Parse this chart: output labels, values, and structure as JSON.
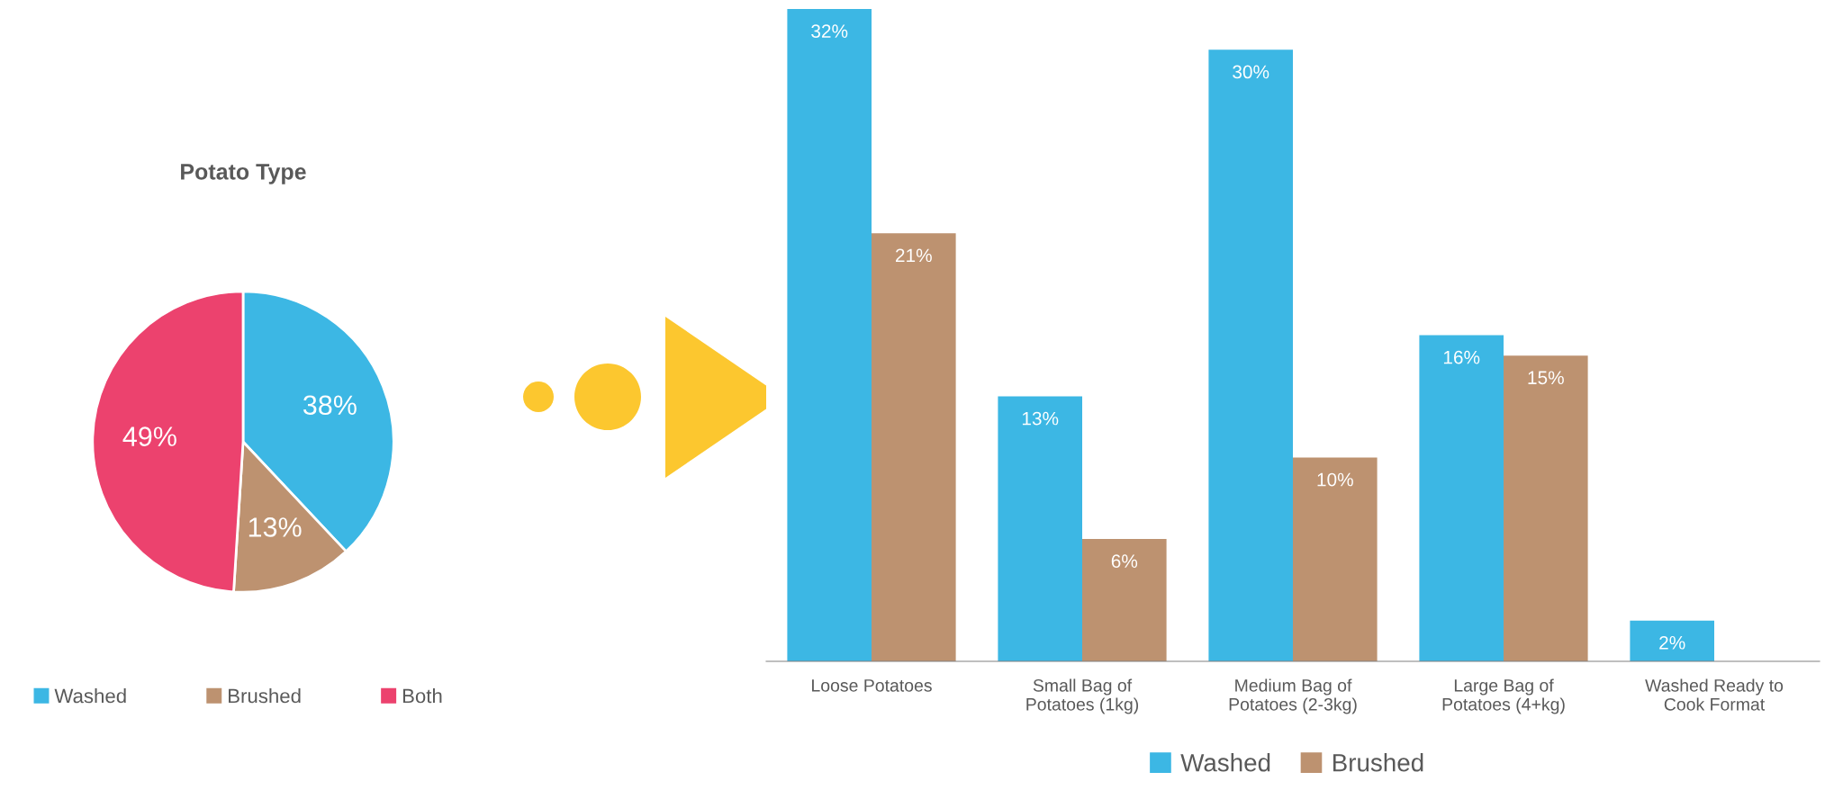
{
  "chart_data": [
    {
      "type": "pie",
      "title": "Potato Type",
      "categories": [
        "Washed",
        "Brushed",
        "Both"
      ],
      "values": [
        38,
        13,
        49
      ],
      "colors": [
        "#3cb7e4",
        "#bd9270",
        "#ec426e"
      ],
      "value_labels": [
        "38%",
        "13%",
        "49%"
      ],
      "legend": "bottom"
    },
    {
      "type": "bar",
      "categories": [
        "Loose Potatoes",
        "Small Bag of\nPotatoes (1kg)",
        "Medium Bag of\nPotatoes (2-3kg)",
        "Large Bag of\nPotatoes (4+kg)",
        "Washed Ready to\nCook Format"
      ],
      "ylim": [
        0,
        32
      ],
      "legend": "bottom",
      "series": [
        {
          "name": "Washed",
          "color": "#3cb7e4",
          "values": [
            32,
            13,
            30,
            16,
            2
          ],
          "value_labels": [
            "32%",
            "13%",
            "30%",
            "16%",
            "2%"
          ]
        },
        {
          "name": "Brushed",
          "color": "#bd9270",
          "values": [
            21,
            6,
            10,
            15,
            null
          ],
          "value_labels": [
            "21%",
            "6%",
            "10%",
            "15%",
            null
          ]
        }
      ]
    }
  ]
}
